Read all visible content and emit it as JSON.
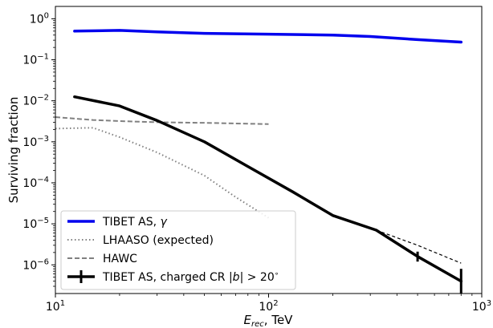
{
  "chart_data": {
    "type": "line",
    "xlabel": "E_rec, TeV",
    "ylabel": "Surviving fraction",
    "x_scale": "log",
    "y_scale": "log",
    "xlim": [
      10,
      1000
    ],
    "ylim": [
      2e-07,
      2
    ],
    "x_ticks": [
      {
        "value": 10,
        "base": "10",
        "exp": "1"
      },
      {
        "value": 100,
        "base": "10",
        "exp": "2"
      },
      {
        "value": 1000,
        "base": "10",
        "exp": "3"
      }
    ],
    "y_ticks": [
      {
        "value": 1e-06,
        "base": "10",
        "exp": "−6"
      },
      {
        "value": 1e-05,
        "base": "10",
        "exp": "−5"
      },
      {
        "value": 0.0001,
        "base": "10",
        "exp": "−4"
      },
      {
        "value": 0.001,
        "base": "10",
        "exp": "−3"
      },
      {
        "value": 0.01,
        "base": "10",
        "exp": "−2"
      },
      {
        "value": 0.1,
        "base": "10",
        "exp": "−1"
      },
      {
        "value": 1,
        "base": "10",
        "exp": "0"
      }
    ],
    "grid": false,
    "legend_position": "bottom-left",
    "series": [
      {
        "name": "TIBET AS, γ",
        "style": "solid",
        "color": "#0000ee",
        "x": [
          12.3,
          20,
          30,
          50,
          100,
          200,
          300,
          500,
          800
        ],
        "y": [
          0.5,
          0.52,
          0.48,
          0.44,
          0.42,
          0.4,
          0.37,
          0.31,
          0.27
        ]
      },
      {
        "name": "LHAASO (expected)",
        "style": "dotted",
        "color": "#808080",
        "x": [
          10,
          15,
          20,
          30,
          50,
          70,
          100
        ],
        "y": [
          0.0021,
          0.0022,
          0.0013,
          0.00055,
          0.00015,
          4.5e-05,
          1.4e-05
        ]
      },
      {
        "name": "HAWC",
        "style": "dashed",
        "color": "#808080",
        "x": [
          10,
          15,
          20,
          30,
          50,
          70,
          100
        ],
        "y": [
          0.004,
          0.0034,
          0.0032,
          0.003,
          0.0029,
          0.0028,
          0.0027
        ]
      },
      {
        "name": "TIBET AS, charged CR |b| > 20°",
        "style": "solid",
        "color": "#000000",
        "x": [
          12.3,
          20,
          30,
          50,
          80,
          130,
          200,
          320,
          500,
          800
        ],
        "y": [
          0.0125,
          0.0075,
          0.0033,
          0.001,
          0.00025,
          6e-05,
          1.6e-05,
          7e-06,
          1.6e-06,
          4e-07
        ],
        "error_bars": [
          {
            "x": 500,
            "y": 1.6e-06,
            "low": 1.2e-06,
            "high": 2.1e-06
          },
          {
            "x": 800,
            "y": 4e-07,
            "low": 2e-07,
            "high": 8e-07
          }
        ]
      },
      {
        "style": "dashed-thin",
        "color": "#000000",
        "x": [
          320,
          500,
          800
        ],
        "y": [
          7e-06,
          3e-06,
          1.1e-06
        ]
      }
    ]
  }
}
